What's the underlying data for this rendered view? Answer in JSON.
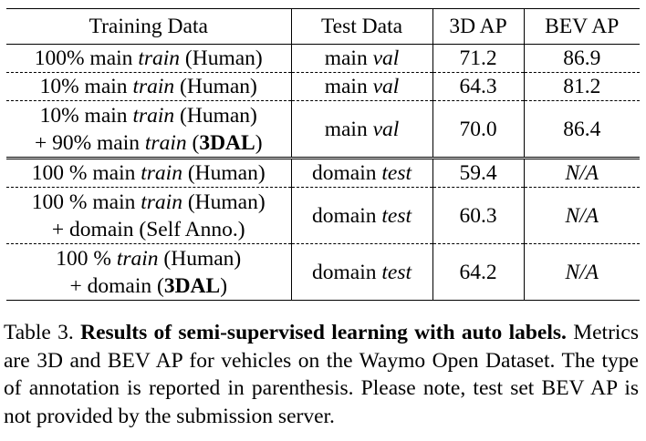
{
  "table": {
    "headers": [
      "Training Data",
      "Test Data",
      "3D AP",
      "BEV AP"
    ],
    "rows": [
      {
        "training": [
          {
            "t": "100% main "
          },
          {
            "t": "train",
            "s": "i"
          },
          {
            "t": " (Human)"
          }
        ],
        "test": [
          {
            "t": "main "
          },
          {
            "t": "val",
            "s": "i"
          }
        ],
        "ap3d": "71.2",
        "bev": "86.9"
      },
      {
        "training": [
          {
            "t": "10% main "
          },
          {
            "t": "train",
            "s": "i"
          },
          {
            "t": " (Human)"
          }
        ],
        "test": [
          {
            "t": "main "
          },
          {
            "t": "val",
            "s": "i"
          }
        ],
        "ap3d": "64.3",
        "bev": "81.2"
      },
      {
        "training": [
          {
            "t": "10% main "
          },
          {
            "t": "train",
            "s": "i"
          },
          {
            "t": " (Human)"
          },
          {
            "br": true
          },
          {
            "t": "+ 90% main "
          },
          {
            "t": "train",
            "s": "i"
          },
          {
            "t": " ("
          },
          {
            "t": "3DAL",
            "s": "b"
          },
          {
            "t": ")"
          }
        ],
        "test": [
          {
            "t": "main "
          },
          {
            "t": "val",
            "s": "i"
          }
        ],
        "ap3d": "70.0",
        "bev": "86.4"
      },
      {
        "training": [
          {
            "t": "100 % main "
          },
          {
            "t": "train",
            "s": "i"
          },
          {
            "t": " (Human)"
          }
        ],
        "test": [
          {
            "t": "domain "
          },
          {
            "t": "test",
            "s": "i"
          }
        ],
        "ap3d": "59.4",
        "bev": "N/A"
      },
      {
        "training": [
          {
            "t": "100 % main "
          },
          {
            "t": "train",
            "s": "i"
          },
          {
            "t": " (Human)"
          },
          {
            "br": true
          },
          {
            "t": "+ domain (Self Anno.)"
          }
        ],
        "test": [
          {
            "t": "domain "
          },
          {
            "t": "test",
            "s": "i"
          }
        ],
        "ap3d": "60.3",
        "bev": "N/A"
      },
      {
        "training": [
          {
            "t": "100 % "
          },
          {
            "t": "train",
            "s": "i"
          },
          {
            "t": " (Human)"
          },
          {
            "br": true
          },
          {
            "t": "+ domain ("
          },
          {
            "t": "3DAL",
            "s": "b"
          },
          {
            "t": ")"
          }
        ],
        "test": [
          {
            "t": "domain "
          },
          {
            "t": "test",
            "s": "i"
          }
        ],
        "ap3d": "64.2",
        "bev": "N/A"
      }
    ]
  },
  "caption": {
    "label": "Table 3.",
    "title": "Results of semi-supervised learning with auto labels.",
    "body": "Metrics are 3D and BEV AP for vehicles on the Waymo Open Dataset. The type of annotation is reported in parenthesis. Please note, test set BEV AP is not provided by the submission server."
  }
}
